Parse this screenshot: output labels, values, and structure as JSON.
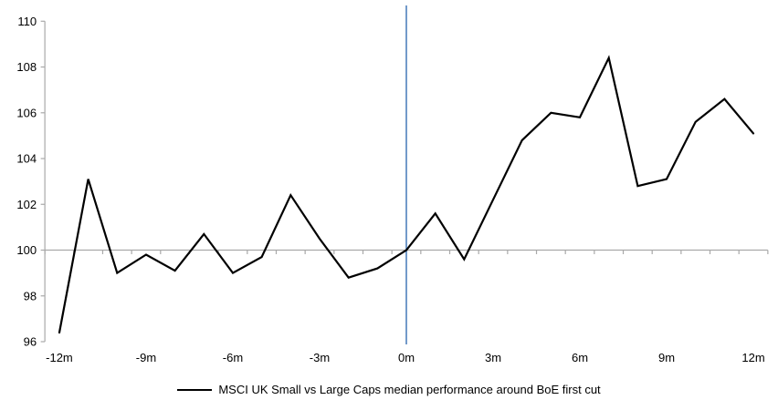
{
  "chart_data": {
    "type": "line",
    "title": "",
    "xlabel": "",
    "ylabel": "",
    "x": [
      -12,
      -11,
      -10,
      -9,
      -8,
      -7,
      -6,
      -5,
      -4,
      -3,
      -2,
      -1,
      0,
      1,
      2,
      3,
      4,
      5,
      6,
      7,
      8,
      9,
      10,
      11,
      12
    ],
    "series": [
      {
        "name": "MSCI UK Small vs Large Caps median performance around BoE first cut",
        "color": "#000000",
        "values": [
          96.4,
          103.1,
          99.0,
          99.8,
          99.1,
          100.7,
          99.0,
          99.7,
          102.4,
          100.5,
          98.8,
          99.2,
          100.0,
          101.6,
          99.6,
          102.2,
          104.8,
          106.0,
          105.8,
          108.4,
          102.8,
          103.1,
          105.6,
          106.6,
          105.1
        ]
      }
    ],
    "ylim": [
      96,
      110
    ],
    "ytick_step": 2,
    "ytick_labels": [
      "96",
      "98",
      "100",
      "102",
      "104",
      "106",
      "108",
      "110"
    ],
    "xlim_padded": [
      -12.5,
      12.5
    ],
    "xtick_values": [
      -12,
      -9,
      -6,
      -3,
      0,
      3,
      6,
      9,
      12
    ],
    "xtick_labels": [
      "-12m",
      "-9m",
      "-6m",
      "-3m",
      "0m",
      "3m",
      "6m",
      "9m",
      "12m"
    ],
    "baseline_value": 100,
    "event_line_x": 0,
    "grid": "off",
    "legend_position": "bottom",
    "colors": {
      "series": "#000000",
      "event_line": "#4f81bd",
      "axis": "#a9a9a9",
      "text": "#000000"
    }
  }
}
